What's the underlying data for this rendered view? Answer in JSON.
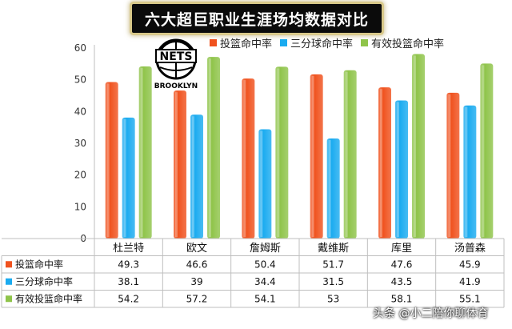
{
  "chart_data": {
    "type": "bar",
    "title": "六大超巨职业生涯场均数据对比",
    "categories": [
      "杜兰特",
      "欧文",
      "詹姆斯",
      "戴维斯",
      "库里",
      "汤普森"
    ],
    "series": [
      {
        "name": "投篮命中率",
        "color": "#f0521e",
        "values": [
          49.3,
          46.6,
          50.4,
          51.7,
          47.6,
          45.9
        ]
      },
      {
        "name": "三分球命中率",
        "color": "#1aabf0",
        "values": [
          38.1,
          39,
          34.4,
          31.5,
          43.5,
          41.9
        ]
      },
      {
        "name": "有效投篮命中率",
        "color": "#8fc44a",
        "values": [
          54.2,
          57.2,
          54.1,
          53,
          58.1,
          55.1
        ]
      }
    ],
    "ylim": [
      0,
      60
    ],
    "yticks": [
      0,
      10,
      20,
      30,
      40,
      50,
      60
    ],
    "grid": false,
    "legend": "top-right",
    "data_table": true
  },
  "logo": {
    "wordmark": "NETS",
    "city": "BROOKLYN"
  },
  "watermark": "头条 @小二陪你聊体育"
}
